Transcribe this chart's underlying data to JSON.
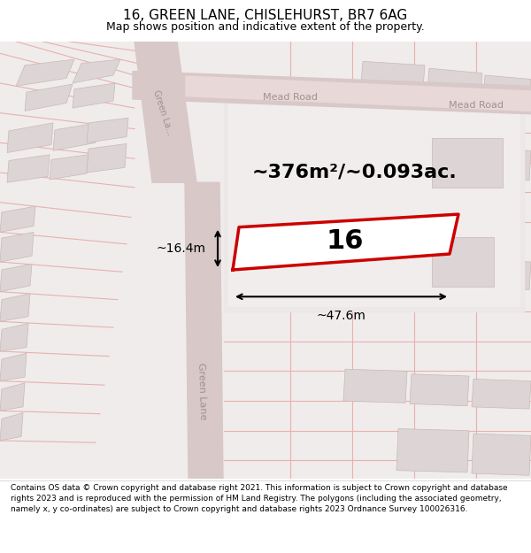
{
  "title": "16, GREEN LANE, CHISLEHURST, BR7 6AG",
  "subtitle": "Map shows position and indicative extent of the property.",
  "footer": "Contains OS data © Crown copyright and database right 2021. This information is subject to Crown copyright and database rights 2023 and is reproduced with the permission of HM Land Registry. The polygons (including the associated geometry, namely x, y co-ordinates) are subject to Crown copyright and database rights 2023 Ordnance Survey 100026316.",
  "area_label": "~376m²/~0.093ac.",
  "width_label": "~47.6m",
  "height_label": "~16.4m",
  "plot_number": "16",
  "map_bg": "#f2eeee",
  "highlight_color": "#cc0000",
  "title_fontsize": 11,
  "subtitle_fontsize": 9,
  "footer_fontsize": 6.5
}
